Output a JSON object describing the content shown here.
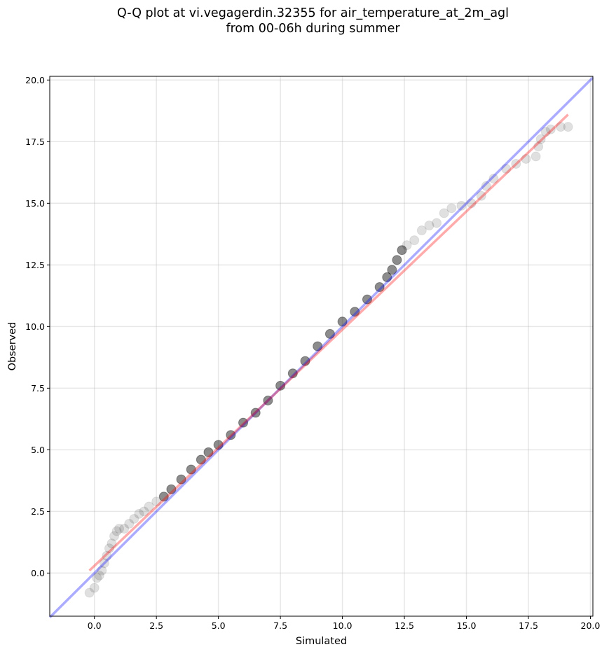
{
  "chart_data": {
    "type": "scatter",
    "title_lines": [
      "Q-Q plot at vi.vegagerdin.32355 for air_temperature_at_2m_agl",
      "from 00-06h during summer"
    ],
    "xlabel": "Simulated",
    "ylabel": "Observed",
    "xlim": [
      -1.8,
      20.1
    ],
    "ylim": [
      -1.75,
      20.15
    ],
    "xticks": [
      "0.0",
      "2.5",
      "5.0",
      "7.5",
      "10.0",
      "12.5",
      "15.0",
      "17.5",
      "20.0"
    ],
    "yticks": [
      "0.0",
      "2.5",
      "5.0",
      "7.5",
      "10.0",
      "12.5",
      "15.0",
      "17.5",
      "20.0"
    ],
    "grid": true,
    "series": [
      {
        "kind": "points",
        "color": "#000000",
        "x": [
          -0.2,
          0.0,
          0.1,
          0.2,
          0.3,
          0.4,
          0.5,
          0.6,
          0.7,
          0.8,
          0.9,
          1.0,
          1.2,
          1.4,
          1.6,
          1.8,
          2.0,
          2.2,
          2.5,
          2.8,
          3.1,
          3.5,
          3.9,
          4.3,
          4.6,
          5.0,
          5.5,
          6.0,
          6.5,
          7.0,
          7.5,
          8.0,
          8.5,
          9.0,
          9.5,
          10.0,
          10.5,
          11.0,
          11.5,
          11.8,
          12.0,
          12.2,
          12.4,
          12.6,
          12.9,
          13.2,
          13.5,
          13.8,
          14.1,
          14.4,
          14.8,
          15.2,
          15.6,
          15.8,
          16.1,
          16.6,
          17.0,
          17.4,
          17.8,
          17.9,
          18.0,
          18.2,
          18.4,
          18.8,
          19.1
        ],
        "y": [
          -0.8,
          -0.6,
          -0.2,
          -0.1,
          0.1,
          0.4,
          0.7,
          1.0,
          1.2,
          1.5,
          1.7,
          1.8,
          1.8,
          2.0,
          2.2,
          2.4,
          2.5,
          2.7,
          2.9,
          3.1,
          3.4,
          3.8,
          4.2,
          4.6,
          4.9,
          5.2,
          5.6,
          6.1,
          6.5,
          7.0,
          7.6,
          8.1,
          8.6,
          9.2,
          9.7,
          10.2,
          10.6,
          11.1,
          11.6,
          12.0,
          12.3,
          12.7,
          13.1,
          13.3,
          13.5,
          13.9,
          14.1,
          14.2,
          14.6,
          14.8,
          14.9,
          15.0,
          15.3,
          15.7,
          16.0,
          16.4,
          16.6,
          16.8,
          16.9,
          17.3,
          17.6,
          17.9,
          18.0,
          18.1,
          18.1
        ]
      },
      {
        "kind": "line",
        "name": "",
        "color": "#0000ff",
        "x": [
          -1.8,
          20.1
        ],
        "y": [
          -1.8,
          20.1
        ]
      },
      {
        "kind": "line",
        "name": "",
        "color": "#ff0000",
        "x": [
          -0.2,
          19.1
        ],
        "y": [
          0.1,
          18.6
        ]
      }
    ]
  }
}
